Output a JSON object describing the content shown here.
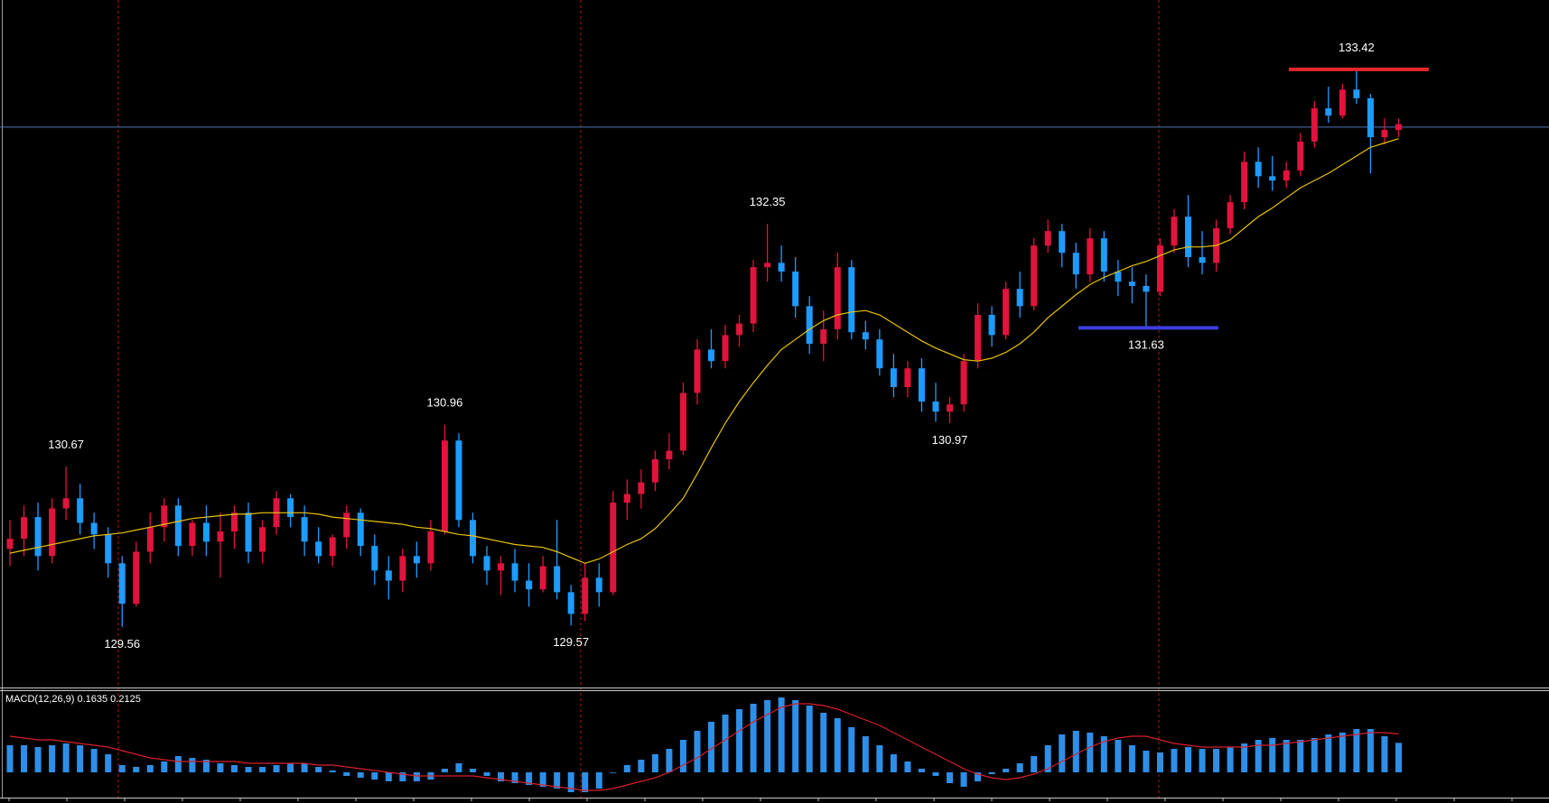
{
  "chart_data": [
    {
      "type": "candlestick",
      "ylim": [
        129.14,
        133.9
      ],
      "up_color": "#e0143c",
      "down_color": "#1e9bff",
      "ohlc": [
        [
          130.1,
          130.3,
          129.98,
          130.17
        ],
        [
          130.17,
          130.4,
          130.05,
          130.32
        ],
        [
          130.32,
          130.42,
          129.95,
          130.05
        ],
        [
          130.05,
          130.45,
          130.0,
          130.38
        ],
        [
          130.38,
          130.67,
          130.3,
          130.45
        ],
        [
          130.45,
          130.55,
          130.2,
          130.28
        ],
        [
          130.28,
          130.35,
          130.1,
          130.2
        ],
        [
          130.2,
          130.25,
          129.9,
          130.0
        ],
        [
          130.0,
          130.05,
          129.56,
          129.72
        ],
        [
          129.72,
          130.15,
          129.7,
          130.08
        ],
        [
          130.08,
          130.35,
          130.0,
          130.25
        ],
        [
          130.25,
          130.45,
          130.15,
          130.4
        ],
        [
          130.4,
          130.45,
          130.05,
          130.12
        ],
        [
          130.12,
          130.3,
          130.05,
          130.28
        ],
        [
          130.28,
          130.4,
          130.05,
          130.15
        ],
        [
          130.15,
          130.35,
          129.9,
          130.22
        ],
        [
          130.22,
          130.4,
          130.1,
          130.35
        ],
        [
          130.35,
          130.42,
          130.0,
          130.08
        ],
        [
          130.08,
          130.3,
          130.0,
          130.25
        ],
        [
          130.25,
          130.5,
          130.2,
          130.45
        ],
        [
          130.45,
          130.48,
          130.25,
          130.32
        ],
        [
          130.32,
          130.4,
          130.05,
          130.15
        ],
        [
          130.15,
          130.25,
          130.0,
          130.05
        ],
        [
          130.05,
          130.2,
          129.98,
          130.18
        ],
        [
          130.18,
          130.4,
          130.1,
          130.35
        ],
        [
          130.35,
          130.38,
          130.05,
          130.12
        ],
        [
          130.12,
          130.2,
          129.85,
          129.95
        ],
        [
          129.95,
          130.05,
          129.75,
          129.88
        ],
        [
          129.88,
          130.1,
          129.8,
          130.05
        ],
        [
          130.05,
          130.15,
          129.9,
          130.0
        ],
        [
          130.0,
          130.3,
          129.95,
          130.22
        ],
        [
          130.22,
          130.96,
          130.2,
          130.85
        ],
        [
          130.85,
          130.9,
          130.25,
          130.3
        ],
        [
          130.3,
          130.35,
          130.0,
          130.05
        ],
        [
          130.05,
          130.12,
          129.85,
          129.95
        ],
        [
          129.95,
          130.05,
          129.78,
          130.0
        ],
        [
          130.0,
          130.1,
          129.8,
          129.88
        ],
        [
          129.88,
          130.0,
          129.7,
          129.82
        ],
        [
          129.82,
          130.05,
          129.8,
          129.98
        ],
        [
          129.98,
          130.3,
          129.75,
          129.8
        ],
        [
          129.8,
          129.85,
          129.57,
          129.65
        ],
        [
          129.65,
          130.0,
          129.6,
          129.9
        ],
        [
          129.9,
          130.0,
          129.7,
          129.8
        ],
        [
          129.8,
          130.5,
          129.78,
          130.42
        ],
        [
          130.42,
          130.58,
          130.3,
          130.48
        ],
        [
          130.48,
          130.65,
          130.38,
          130.56
        ],
        [
          130.56,
          130.78,
          130.5,
          130.72
        ],
        [
          130.72,
          130.9,
          130.65,
          130.78
        ],
        [
          130.78,
          131.25,
          130.75,
          131.18
        ],
        [
          131.18,
          131.55,
          131.1,
          131.48
        ],
        [
          131.48,
          131.62,
          131.35,
          131.4
        ],
        [
          131.4,
          131.65,
          131.35,
          131.58
        ],
        [
          131.58,
          131.72,
          131.5,
          131.66
        ],
        [
          131.66,
          132.1,
          131.6,
          132.05
        ],
        [
          132.05,
          132.35,
          131.95,
          132.08
        ],
        [
          132.08,
          132.2,
          131.95,
          132.02
        ],
        [
          132.02,
          132.12,
          131.7,
          131.78
        ],
        [
          131.78,
          131.85,
          131.45,
          131.52
        ],
        [
          131.52,
          131.75,
          131.4,
          131.62
        ],
        [
          131.62,
          132.15,
          131.55,
          132.05
        ],
        [
          132.05,
          132.1,
          131.55,
          131.6
        ],
        [
          131.6,
          131.68,
          131.48,
          131.55
        ],
        [
          131.55,
          131.62,
          131.3,
          131.35
        ],
        [
          131.35,
          131.45,
          131.15,
          131.22
        ],
        [
          131.22,
          131.4,
          131.15,
          131.35
        ],
        [
          131.35,
          131.42,
          131.05,
          131.12
        ],
        [
          131.12,
          131.25,
          130.98,
          131.05
        ],
        [
          131.05,
          131.15,
          130.97,
          131.1
        ],
        [
          131.1,
          131.45,
          131.05,
          131.4
        ],
        [
          131.4,
          131.8,
          131.35,
          131.72
        ],
        [
          131.72,
          131.78,
          131.5,
          131.58
        ],
        [
          131.58,
          131.95,
          131.55,
          131.9
        ],
        [
          131.9,
          132.02,
          131.7,
          131.78
        ],
        [
          131.78,
          132.25,
          131.75,
          132.2
        ],
        [
          132.2,
          132.38,
          132.15,
          132.3
        ],
        [
          132.3,
          132.35,
          132.05,
          132.15
        ],
        [
          132.15,
          132.22,
          131.9,
          132.0
        ],
        [
          132.0,
          132.32,
          131.95,
          132.25
        ],
        [
          132.25,
          132.3,
          131.95,
          132.02
        ],
        [
          132.02,
          132.1,
          131.85,
          131.95
        ],
        [
          131.95,
          132.05,
          131.8,
          131.92
        ],
        [
          131.92,
          132.0,
          131.63,
          131.88
        ],
        [
          131.88,
          132.25,
          131.85,
          132.2
        ],
        [
          132.2,
          132.45,
          132.15,
          132.4
        ],
        [
          132.4,
          132.55,
          132.05,
          132.12
        ],
        [
          132.12,
          132.3,
          132.0,
          132.08
        ],
        [
          132.08,
          132.38,
          132.02,
          132.32
        ],
        [
          132.32,
          132.55,
          132.28,
          132.5
        ],
        [
          132.5,
          132.85,
          132.45,
          132.78
        ],
        [
          132.78,
          132.88,
          132.6,
          132.68
        ],
        [
          132.68,
          132.82,
          132.58,
          132.65
        ],
        [
          132.65,
          132.78,
          132.6,
          132.72
        ],
        [
          132.72,
          132.98,
          132.68,
          132.92
        ],
        [
          132.92,
          133.2,
          132.88,
          133.15
        ],
        [
          133.15,
          133.3,
          133.05,
          133.1
        ],
        [
          133.1,
          133.32,
          133.08,
          133.28
        ],
        [
          133.28,
          133.42,
          133.18,
          133.22
        ],
        [
          133.22,
          133.25,
          132.7,
          132.95
        ],
        [
          132.95,
          133.08,
          132.9,
          133.0
        ],
        [
          133.0,
          133.08,
          132.95,
          133.04
        ]
      ],
      "moving_average": {
        "color": "#e8c20a",
        "values": [
          130.07,
          130.09,
          130.11,
          130.13,
          130.15,
          130.17,
          130.19,
          130.2,
          130.21,
          130.23,
          130.25,
          130.27,
          130.29,
          130.31,
          130.32,
          130.33,
          130.34,
          130.34,
          130.35,
          130.35,
          130.35,
          130.35,
          130.34,
          130.32,
          130.31,
          130.3,
          130.29,
          130.28,
          130.27,
          130.25,
          130.24,
          130.22,
          130.2,
          130.19,
          130.17,
          130.15,
          130.13,
          130.12,
          130.11,
          130.08,
          130.04,
          130.0,
          130.03,
          130.08,
          130.13,
          130.17,
          130.24,
          130.34,
          130.45,
          130.62,
          130.8,
          130.97,
          131.12,
          131.25,
          131.37,
          131.48,
          131.55,
          131.62,
          131.68,
          131.72,
          131.74,
          131.75,
          131.72,
          131.66,
          131.6,
          131.54,
          131.49,
          131.45,
          131.41,
          131.4,
          131.42,
          131.46,
          131.52,
          131.6,
          131.7,
          131.78,
          131.86,
          131.93,
          131.98,
          132.02,
          132.06,
          132.09,
          132.13,
          132.17,
          132.19,
          132.19,
          132.2,
          132.24,
          132.32,
          132.4,
          132.46,
          132.53,
          132.6,
          132.65,
          132.7,
          132.76,
          132.82,
          132.88,
          132.91,
          132.94
        ]
      },
      "price_line": 133.02,
      "price_line_color": "#4a78b8",
      "levels": [
        {
          "value": 133.42,
          "color": "#e8262c"
        },
        {
          "value": 131.63,
          "color": "#3d3de0"
        }
      ],
      "annotations": [
        130.67,
        129.56,
        130.96,
        129.57,
        132.35,
        130.97,
        131.63,
        133.42
      ]
    },
    {
      "type": "macd",
      "title": "MACD(12,26,9) 0.1635 0.2125",
      "ylim": [
        -0.14,
        0.45
      ],
      "color": "#2e8fe8",
      "values": [
        0.15,
        0.15,
        0.14,
        0.15,
        0.16,
        0.15,
        0.13,
        0.1,
        0.04,
        0.03,
        0.04,
        0.06,
        0.09,
        0.08,
        0.07,
        0.05,
        0.04,
        0.03,
        0.03,
        0.04,
        0.05,
        0.05,
        0.03,
        0.01,
        -0.02,
        -0.03,
        -0.04,
        -0.05,
        -0.05,
        -0.05,
        -0.04,
        0.02,
        0.05,
        0.02,
        -0.02,
        -0.05,
        -0.06,
        -0.07,
        -0.08,
        -0.09,
        -0.11,
        -0.11,
        -0.09,
        0.0,
        0.04,
        0.07,
        0.1,
        0.13,
        0.18,
        0.23,
        0.28,
        0.32,
        0.35,
        0.38,
        0.4,
        0.415,
        0.4,
        0.37,
        0.33,
        0.3,
        0.25,
        0.2,
        0.15,
        0.1,
        0.06,
        0.02,
        -0.02,
        -0.06,
        -0.08,
        -0.05,
        -0.01,
        0.02,
        0.05,
        0.09,
        0.15,
        0.21,
        0.23,
        0.22,
        0.2,
        0.18,
        0.15,
        0.12,
        0.11,
        0.13,
        0.14,
        0.13,
        0.13,
        0.14,
        0.16,
        0.18,
        0.19,
        0.18,
        0.18,
        0.19,
        0.21,
        0.22,
        0.24,
        0.24,
        0.2,
        0.1635
      ],
      "signal": {
        "color": "#d8202a",
        "values": [
          0.2,
          0.19,
          0.18,
          0.18,
          0.17,
          0.16,
          0.15,
          0.14,
          0.12,
          0.1,
          0.08,
          0.07,
          0.06,
          0.06,
          0.06,
          0.06,
          0.06,
          0.05,
          0.05,
          0.05,
          0.05,
          0.05,
          0.04,
          0.04,
          0.03,
          0.02,
          0.01,
          0.0,
          -0.01,
          -0.02,
          -0.02,
          -0.02,
          -0.02,
          -0.02,
          -0.03,
          -0.04,
          -0.05,
          -0.06,
          -0.07,
          -0.08,
          -0.09,
          -0.1,
          -0.1,
          -0.09,
          -0.07,
          -0.05,
          -0.03,
          0.0,
          0.04,
          0.08,
          0.13,
          0.18,
          0.23,
          0.28,
          0.32,
          0.36,
          0.38,
          0.38,
          0.37,
          0.35,
          0.32,
          0.29,
          0.26,
          0.22,
          0.18,
          0.14,
          0.1,
          0.06,
          0.02,
          -0.01,
          -0.03,
          -0.04,
          -0.03,
          -0.01,
          0.02,
          0.06,
          0.1,
          0.14,
          0.17,
          0.19,
          0.2,
          0.2,
          0.18,
          0.16,
          0.15,
          0.14,
          0.14,
          0.14,
          0.14,
          0.15,
          0.15,
          0.16,
          0.17,
          0.18,
          0.19,
          0.2,
          0.21,
          0.22,
          0.22,
          0.2125
        ]
      }
    }
  ]
}
